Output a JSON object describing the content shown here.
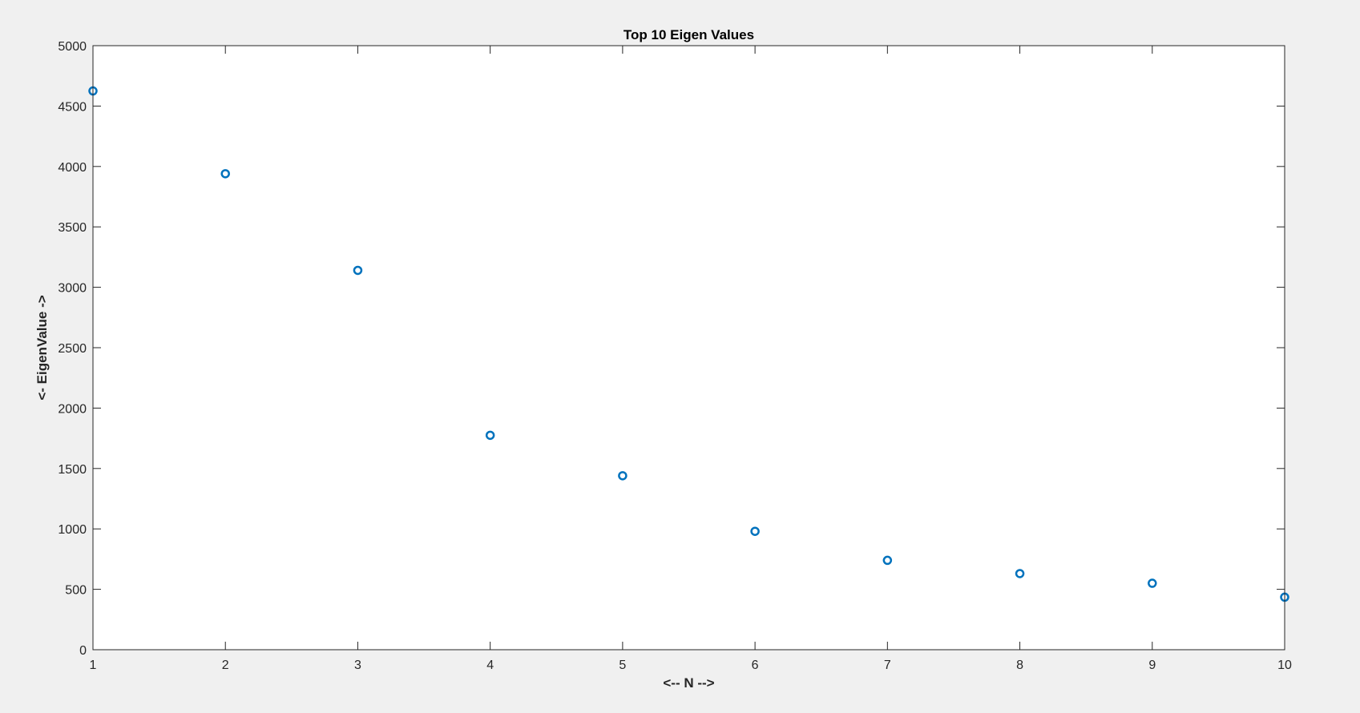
{
  "chart_data": {
    "type": "scatter",
    "title": "Top 10 Eigen Values",
    "xlabel": "<-- N -->",
    "ylabel": "<- EigenValue ->",
    "x": [
      1,
      2,
      3,
      4,
      5,
      6,
      7,
      8,
      9,
      10
    ],
    "series": [
      {
        "values": [
          4625,
          3940,
          3140,
          1775,
          1440,
          980,
          740,
          630,
          550,
          435
        ]
      }
    ],
    "xlim": [
      1,
      10
    ],
    "ylim": [
      0,
      5000
    ],
    "xticks": [
      1,
      2,
      3,
      4,
      5,
      6,
      7,
      8,
      9,
      10
    ],
    "yticks": [
      0,
      500,
      1000,
      1500,
      2000,
      2500,
      3000,
      3500,
      4000,
      4500,
      5000
    ],
    "xtick_labels": [
      "1",
      "2",
      "3",
      "4",
      "5",
      "6",
      "7",
      "8",
      "9",
      "10"
    ],
    "ytick_labels": [
      "0",
      "500",
      "1000",
      "1500",
      "2000",
      "2500",
      "3000",
      "3500",
      "4000",
      "4500",
      "5000"
    ],
    "grid": false,
    "box": true,
    "marker": "circle-open",
    "colors": {
      "marker": "#0072bd",
      "axes": "#262626",
      "plot_background": "#ffffff",
      "figure_background": "#f0f0f0"
    }
  }
}
